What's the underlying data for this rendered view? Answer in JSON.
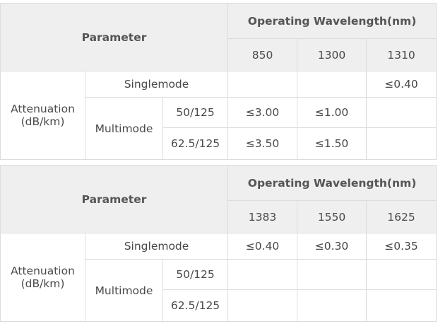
{
  "tables": [
    {
      "parameter": "Parameter",
      "group": "Operating Wavelength(nm)",
      "wavelengths": [
        "850",
        "1300",
        "1310"
      ],
      "attenuation": "Attenuation (dB/km)",
      "singlemode": {
        "label": "Singlemode",
        "values": [
          null,
          null,
          "≤0.40"
        ]
      },
      "multimode": {
        "label": "Multimode",
        "rows": [
          {
            "label": "50/125",
            "values": [
              "≤3.00",
              "≤1.00",
              null
            ]
          },
          {
            "label": "62.5/125",
            "values": [
              "≤3.50",
              "≤1.50",
              null
            ]
          }
        ]
      }
    },
    {
      "parameter": "Parameter",
      "group": "Operating Wavelength(nm)",
      "wavelengths": [
        "1383",
        "1550",
        "1625"
      ],
      "attenuation": "Attenuation (dB/km)",
      "singlemode": {
        "label": "Singlemode",
        "values": [
          "≤0.40",
          "≤0.30",
          "≤0.35"
        ]
      },
      "multimode": {
        "label": "Multimode",
        "rows": [
          {
            "label": "50/125",
            "values": [
              null,
              null,
              null
            ]
          },
          {
            "label": "62.5/125",
            "values": [
              null,
              null,
              null
            ]
          }
        ]
      }
    }
  ]
}
